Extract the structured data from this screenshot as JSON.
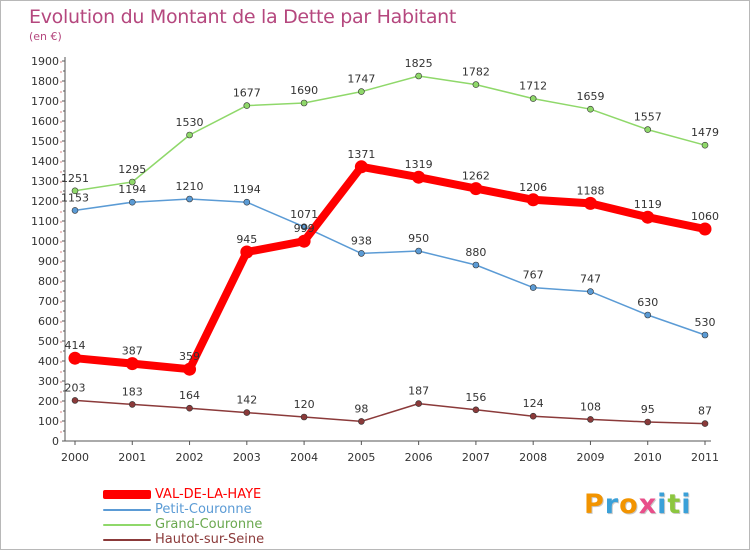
{
  "title": "Evolution du Montant de la Dette par Habitant",
  "subtitle": "(en €)",
  "logo": {
    "text": "Proxiti",
    "letters": [
      {
        "char": "P",
        "color": "#f29400"
      },
      {
        "char": "r",
        "color": "#3aa0d8"
      },
      {
        "char": "o",
        "color": "#f29400"
      },
      {
        "char": "x",
        "color": "#e84e8a"
      },
      {
        "char": "i",
        "color": "#3aa0d8"
      },
      {
        "char": "t",
        "color": "#8cc63f"
      },
      {
        "char": "i",
        "color": "#3aa0d8"
      }
    ]
  },
  "chart_data": {
    "type": "line",
    "title": "Evolution du Montant de la Dette par Habitant",
    "subtitle": "(en €)",
    "x": [
      "2000",
      "2001",
      "2002",
      "2003",
      "2004",
      "2005",
      "2006",
      "2007",
      "2008",
      "2009",
      "2010",
      "2011"
    ],
    "yticks": [
      "0",
      "100",
      "200",
      "300",
      "400",
      "500",
      "600",
      "700",
      "800",
      "900",
      "1000",
      "1100",
      "1200",
      "1300",
      "1400",
      "1500",
      "1600",
      "1700",
      "1800",
      "1900"
    ],
    "ylim": [
      0,
      1900
    ],
    "grid": false,
    "legend_position": "bottom-left",
    "series": [
      {
        "name": "VAL-DE-LA-HAYE",
        "color": "#ff0000",
        "emphasis": true,
        "values": [
          414,
          387,
          359,
          945,
          999,
          1371,
          1319,
          1262,
          1206,
          1188,
          1119,
          1060
        ],
        "labels": [
          "414",
          "387",
          "359",
          "945",
          "999",
          "1371",
          "1319",
          "1262",
          "1206",
          "1188",
          "1119",
          "1060"
        ]
      },
      {
        "name": "Petit-Couronne",
        "color": "#5b9bd5",
        "emphasis": false,
        "values": [
          1153,
          1194,
          1210,
          1194,
          1071,
          938,
          950,
          880,
          767,
          747,
          630,
          530
        ],
        "labels": [
          "1153",
          "1194",
          "1210",
          "1194",
          "1071",
          "938",
          "950",
          "880",
          "767",
          "747",
          "630",
          "530"
        ]
      },
      {
        "name": "Grand-Couronne",
        "color": "#8fd86a",
        "emphasis": false,
        "values": [
          1251,
          1295,
          1530,
          1677,
          1690,
          1747,
          1825,
          1782,
          1712,
          1659,
          1557,
          1479
        ],
        "labels": [
          "1251",
          "1295",
          "1530",
          "1677",
          "1690",
          "1747",
          "1825",
          "1782",
          "1712",
          "1659",
          "1557",
          "1479"
        ]
      },
      {
        "name": "Hautot-sur-Seine",
        "color": "#8b3a3a",
        "emphasis": false,
        "values": [
          203,
          183,
          164,
          142,
          120,
          98,
          187,
          156,
          124,
          108,
          95,
          87
        ],
        "labels": [
          "203",
          "183",
          "164",
          "142",
          "120",
          "98",
          "187",
          "156",
          "124",
          "108",
          "95",
          "87"
        ]
      }
    ]
  }
}
